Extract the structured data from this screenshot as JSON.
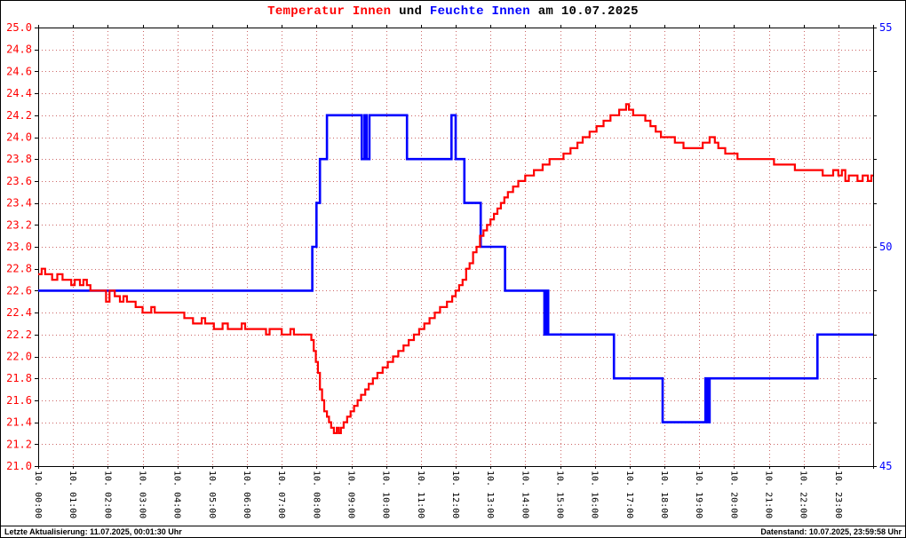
{
  "title": {
    "temp": "Temperatur Innen",
    "and": "und",
    "hum": "Feuchte Innen",
    "date_suffix": "am 10.07.2025"
  },
  "footer": {
    "left": "Letzte Aktualisierung: 11.07.2025, 00:01:30 Uhr",
    "right": "Datenstand: 10.07.2025, 23:59:58 Uhr"
  },
  "colors": {
    "temperature": "#ff0000",
    "humidity": "#0000ff",
    "grid": "#cc6666",
    "axis": "#000000",
    "background": "#ffffff"
  },
  "chart_data": {
    "type": "line",
    "step": true,
    "title": "Temperatur Innen und Feuchte Innen am 10.07.2025",
    "grid": "dotted",
    "x_range": [
      0,
      24
    ],
    "x_tick_labels": [
      "10. 00:00",
      "10. 01:00",
      "10. 02:00",
      "10. 03:00",
      "10. 04:00",
      "10. 05:00",
      "10. 06:00",
      "10. 07:00",
      "10. 08:00",
      "10. 09:00",
      "10. 10:00",
      "10. 11:00",
      "10. 12:00",
      "10. 13:00",
      "10. 14:00",
      "10. 15:00",
      "10. 16:00",
      "10. 17:00",
      "10. 18:00",
      "10. 19:00",
      "10. 20:00",
      "10. 21:00",
      "10. 22:00",
      "10. 23:00"
    ],
    "axes": {
      "left": {
        "min": 21.0,
        "max": 25.0,
        "step": 0.2,
        "color": "#ff0000",
        "decimals": 1
      },
      "right": {
        "min": 45,
        "max": 55,
        "tick_step": 1,
        "labeled_ticks": [
          55,
          50,
          45
        ],
        "color": "#0000ff"
      }
    },
    "series": [
      {
        "name": "Temperatur Innen",
        "axis": "left",
        "unit": "C",
        "color": "#ff0000",
        "points": [
          [
            0.0,
            22.75
          ],
          [
            0.1,
            22.8
          ],
          [
            0.2,
            22.75
          ],
          [
            0.4,
            22.7
          ],
          [
            0.55,
            22.75
          ],
          [
            0.7,
            22.7
          ],
          [
            0.95,
            22.65
          ],
          [
            1.05,
            22.7
          ],
          [
            1.2,
            22.65
          ],
          [
            1.3,
            22.7
          ],
          [
            1.4,
            22.65
          ],
          [
            1.5,
            22.6
          ],
          [
            1.95,
            22.5
          ],
          [
            2.05,
            22.6
          ],
          [
            2.2,
            22.55
          ],
          [
            2.35,
            22.5
          ],
          [
            2.45,
            22.55
          ],
          [
            2.55,
            22.5
          ],
          [
            2.8,
            22.45
          ],
          [
            3.0,
            22.4
          ],
          [
            3.25,
            22.45
          ],
          [
            3.35,
            22.4
          ],
          [
            4.2,
            22.35
          ],
          [
            4.45,
            22.3
          ],
          [
            4.7,
            22.35
          ],
          [
            4.8,
            22.3
          ],
          [
            5.05,
            22.25
          ],
          [
            5.3,
            22.3
          ],
          [
            5.45,
            22.25
          ],
          [
            5.85,
            22.3
          ],
          [
            5.95,
            22.25
          ],
          [
            6.55,
            22.2
          ],
          [
            6.65,
            22.25
          ],
          [
            7.0,
            22.2
          ],
          [
            7.25,
            22.25
          ],
          [
            7.35,
            22.2
          ],
          [
            7.85,
            22.15
          ],
          [
            7.92,
            22.05
          ],
          [
            7.98,
            21.95
          ],
          [
            8.04,
            21.85
          ],
          [
            8.1,
            21.7
          ],
          [
            8.16,
            21.6
          ],
          [
            8.22,
            21.5
          ],
          [
            8.3,
            21.45
          ],
          [
            8.36,
            21.4
          ],
          [
            8.42,
            21.35
          ],
          [
            8.5,
            21.3
          ],
          [
            8.58,
            21.35
          ],
          [
            8.64,
            21.3
          ],
          [
            8.7,
            21.35
          ],
          [
            8.78,
            21.4
          ],
          [
            8.88,
            21.45
          ],
          [
            8.98,
            21.5
          ],
          [
            9.08,
            21.55
          ],
          [
            9.18,
            21.6
          ],
          [
            9.28,
            21.65
          ],
          [
            9.4,
            21.7
          ],
          [
            9.5,
            21.75
          ],
          [
            9.62,
            21.8
          ],
          [
            9.75,
            21.85
          ],
          [
            9.9,
            21.9
          ],
          [
            10.05,
            21.95
          ],
          [
            10.2,
            22.0
          ],
          [
            10.35,
            22.05
          ],
          [
            10.5,
            22.1
          ],
          [
            10.65,
            22.15
          ],
          [
            10.8,
            22.2
          ],
          [
            10.95,
            22.25
          ],
          [
            11.1,
            22.3
          ],
          [
            11.25,
            22.35
          ],
          [
            11.4,
            22.4
          ],
          [
            11.55,
            22.45
          ],
          [
            11.75,
            22.5
          ],
          [
            11.9,
            22.55
          ],
          [
            12.0,
            22.6
          ],
          [
            12.1,
            22.65
          ],
          [
            12.2,
            22.7
          ],
          [
            12.3,
            22.8
          ],
          [
            12.4,
            22.85
          ],
          [
            12.5,
            22.95
          ],
          [
            12.6,
            23.0
          ],
          [
            12.7,
            23.1
          ],
          [
            12.8,
            23.15
          ],
          [
            12.9,
            23.2
          ],
          [
            13.0,
            23.25
          ],
          [
            13.1,
            23.3
          ],
          [
            13.2,
            23.35
          ],
          [
            13.3,
            23.4
          ],
          [
            13.4,
            23.45
          ],
          [
            13.5,
            23.5
          ],
          [
            13.65,
            23.55
          ],
          [
            13.8,
            23.6
          ],
          [
            14.0,
            23.65
          ],
          [
            14.25,
            23.7
          ],
          [
            14.5,
            23.75
          ],
          [
            14.7,
            23.8
          ],
          [
            15.1,
            23.85
          ],
          [
            15.3,
            23.9
          ],
          [
            15.5,
            23.95
          ],
          [
            15.65,
            24.0
          ],
          [
            15.85,
            24.05
          ],
          [
            16.05,
            24.1
          ],
          [
            16.25,
            24.15
          ],
          [
            16.45,
            24.2
          ],
          [
            16.7,
            24.25
          ],
          [
            16.9,
            24.3
          ],
          [
            16.98,
            24.25
          ],
          [
            17.1,
            24.2
          ],
          [
            17.45,
            24.15
          ],
          [
            17.6,
            24.1
          ],
          [
            17.75,
            24.05
          ],
          [
            17.9,
            24.0
          ],
          [
            18.3,
            23.95
          ],
          [
            18.55,
            23.9
          ],
          [
            18.95,
            23.9
          ],
          [
            19.1,
            23.95
          ],
          [
            19.3,
            24.0
          ],
          [
            19.45,
            23.95
          ],
          [
            19.55,
            23.9
          ],
          [
            19.75,
            23.85
          ],
          [
            20.1,
            23.8
          ],
          [
            21.15,
            23.75
          ],
          [
            21.75,
            23.7
          ],
          [
            22.55,
            23.65
          ],
          [
            22.85,
            23.7
          ],
          [
            23.0,
            23.65
          ],
          [
            23.1,
            23.7
          ],
          [
            23.2,
            23.6
          ],
          [
            23.3,
            23.65
          ],
          [
            23.55,
            23.6
          ],
          [
            23.7,
            23.65
          ],
          [
            23.85,
            23.6
          ],
          [
            23.95,
            23.65
          ]
        ]
      },
      {
        "name": "Feuchte Innen",
        "axis": "right",
        "unit": "%",
        "color": "#0000ff",
        "points": [
          [
            0.0,
            49
          ],
          [
            7.88,
            50
          ],
          [
            8.0,
            51
          ],
          [
            8.1,
            52
          ],
          [
            8.3,
            53
          ],
          [
            9.3,
            52
          ],
          [
            9.38,
            53
          ],
          [
            9.44,
            52
          ],
          [
            9.52,
            53
          ],
          [
            10.6,
            52
          ],
          [
            11.88,
            53
          ],
          [
            12.0,
            52
          ],
          [
            12.25,
            51
          ],
          [
            12.72,
            50
          ],
          [
            13.42,
            49
          ],
          [
            14.55,
            48
          ],
          [
            14.6,
            49
          ],
          [
            14.66,
            48
          ],
          [
            16.55,
            47
          ],
          [
            17.95,
            46
          ],
          [
            19.18,
            47
          ],
          [
            19.24,
            46
          ],
          [
            19.3,
            47
          ],
          [
            22.4,
            48
          ]
        ]
      }
    ]
  }
}
